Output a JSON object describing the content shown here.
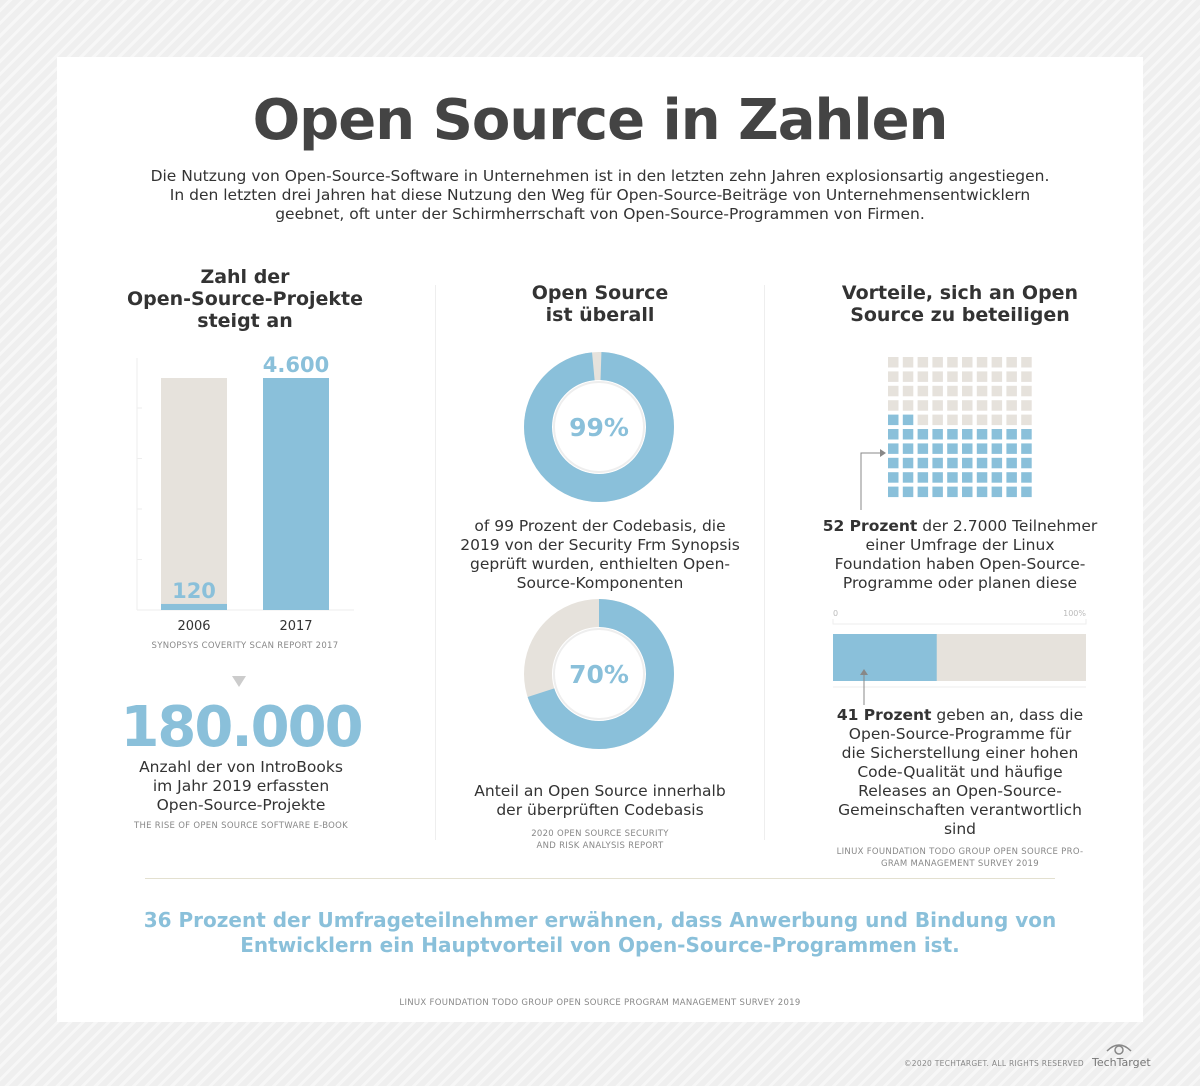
{
  "title": "Open Source in Zahlen",
  "intro": [
    "Die Nutzung von Open-Source-Software in Unternehmen ist in den letzten zehn Jahren explosionsartig angestiegen.",
    "In den letzten drei Jahren hat diese Nutzung den Weg für Open-Source-Beiträge von Unternehmensentwicklern",
    "geebnet, oft unter der Schirmherrschaft von Open-Source-Programmen von Firmen."
  ],
  "colors": {
    "blue": "#8ac0da",
    "gray": "#e6e2dc",
    "text": "#333333"
  },
  "col1": {
    "heading": [
      "Zahl der",
      "Open-Source-Projekte",
      "steigt an"
    ],
    "source": "SYNOPSYS COVERITY SCAN REPORT 2017",
    "big_number": "180.000",
    "big_text": [
      "Anzahl der von IntroBooks",
      "im Jahr 2019 erfassten",
      "Open-Source-Projekte"
    ],
    "big_source": "THE RISE OF OPEN SOURCE SOFTWARE E-BOOK"
  },
  "col2": {
    "heading": [
      "Open Source",
      "ist überall"
    ],
    "text1": [
      "of 99 Prozent der Codebasis, die",
      "2019 von der Security Frm Synopsis",
      "geprüft wurden, enthielten Open-",
      "Source-Komponenten"
    ],
    "text2": [
      "Anteil an Open Source innerhalb",
      "der überprüften Codebasis"
    ],
    "source": [
      "2020 OPEN SOURCE SECURITY",
      "AND RISK ANALYSIS REPORT"
    ]
  },
  "col3": {
    "heading": [
      "Vorteile, sich an Open",
      "Source zu beteiligen"
    ],
    "text1_bold": "52 Prozent",
    "text1": [
      " der 2.7000 Teilnehmer",
      "einer Umfrage der Linux",
      "Foundation haben Open-Source-",
      "Programme oder planen diese"
    ],
    "text2_bold": "41 Prozent",
    "text2": [
      " geben an, dass die",
      "Open-Source-Programme für",
      "die Sicherstellung einer hohen",
      "Code-Qualität und häufige",
      "Releases an Open-Source-",
      "Gemeinschaften verantwortlich",
      "sind"
    ],
    "source": [
      "LINUX FOUNDATION TODO GROUP OPEN SOURCE PRO-",
      "GRAM MANAGEMENT SURVEY 2019"
    ]
  },
  "bottom": {
    "headline": [
      "36 Prozent der Umfrageteilnehmer erwähnen, dass Anwerbung und Bindung von",
      "Entwicklern ein Hauptvorteil von Open-Source-Programmen ist."
    ],
    "source": "LINUX FOUNDATION TODO GROUP OPEN SOURCE PROGRAM MANAGEMENT SURVEY 2019"
  },
  "footer": {
    "copyright": "©2020 TECHTARGET. ALL RIGHTS RESERVED",
    "logo": "TechTarget"
  },
  "chart_data": [
    {
      "type": "bar",
      "categories": [
        "2006",
        "2017"
      ],
      "values": [
        120,
        4600
      ],
      "labels": [
        "120",
        "4.600"
      ],
      "ylim": [
        0,
        4600
      ]
    },
    {
      "type": "pie",
      "variant": "donut",
      "values": [
        99,
        1
      ],
      "label": "99%"
    },
    {
      "type": "pie",
      "variant": "donut",
      "values": [
        70,
        30
      ],
      "label": "70%"
    },
    {
      "type": "waffle",
      "total": 100,
      "highlighted": 52
    },
    {
      "type": "bar",
      "orientation": "horizontal",
      "values": [
        41
      ],
      "xlim": [
        0,
        100
      ],
      "tick_labels": [
        "0",
        "100%"
      ]
    }
  ]
}
